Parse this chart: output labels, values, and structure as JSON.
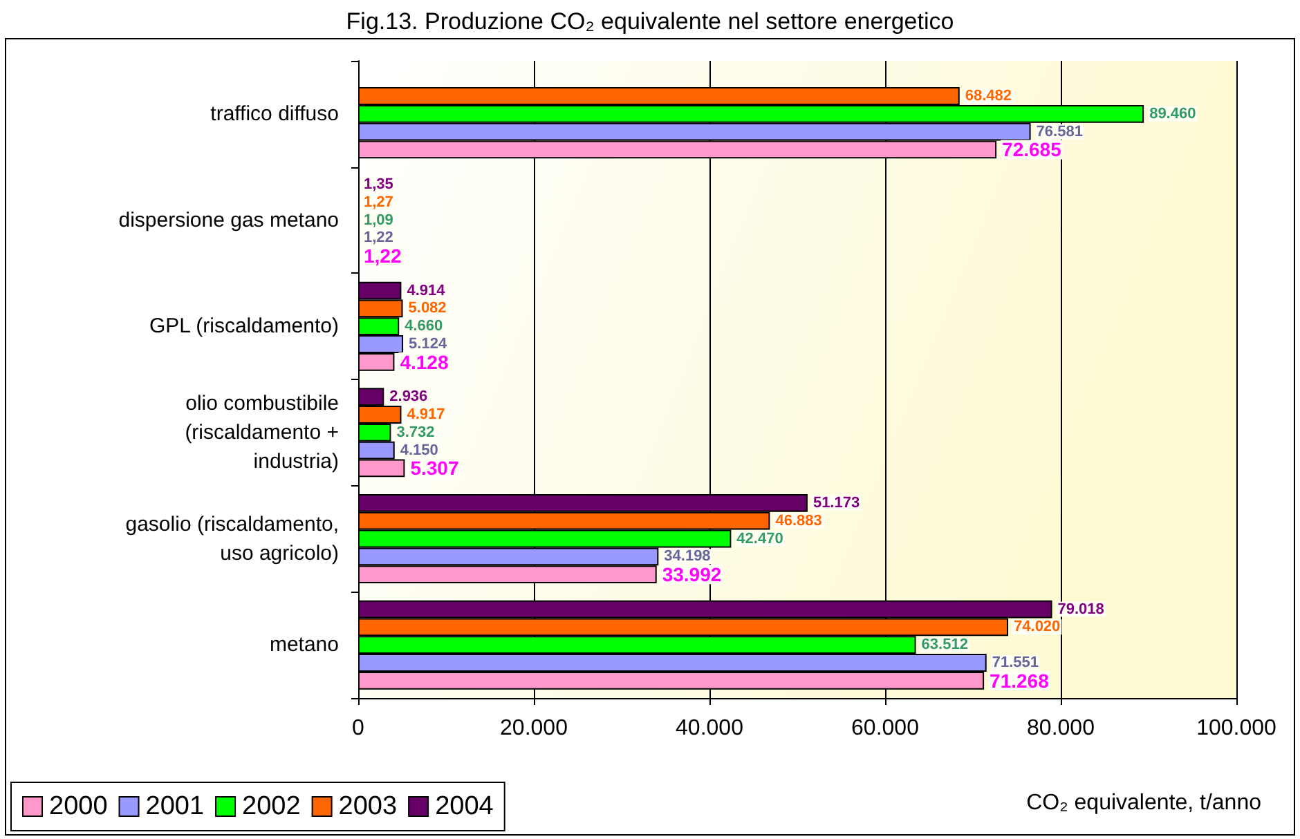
{
  "chart_data": {
    "type": "bar",
    "orientation": "horizontal",
    "title": "Fig.13. Produzione CO₂ equivalente nel settore energetico",
    "xlabel": "CO₂ equivalente, t/anno",
    "categories": [
      "traffico diffuso",
      "dispersione gas metano",
      "GPL (riscaldamento)",
      "olio combustibile\n(riscaldamento +\nindustria)",
      "gasolio (riscaldamento,\nuso agricolo)",
      "metano"
    ],
    "series": [
      {
        "name": "2000",
        "color": "#ff99cc",
        "values": [
          72685,
          1.22,
          4128,
          5307,
          33992,
          71268
        ],
        "value_labels": [
          "72.685",
          "1,22",
          "4.128",
          "5.307",
          "33.992",
          "71.268"
        ]
      },
      {
        "name": "2001",
        "color": "#9999ff",
        "values": [
          76581,
          1.22,
          5124,
          4150,
          34198,
          71551
        ],
        "value_labels": [
          "76.581",
          "1,22",
          "5.124",
          "4.150",
          "34.198",
          "71.551"
        ]
      },
      {
        "name": "2002",
        "color": "#00ff00",
        "values": [
          89460,
          1.09,
          4660,
          3732,
          42470,
          63512
        ],
        "value_labels": [
          "89.460",
          "1,09",
          "4.660",
          "3.732",
          "42.470",
          "63.512"
        ]
      },
      {
        "name": "2003",
        "color": "#ff6600",
        "values": [
          68482,
          1.27,
          5082,
          4917,
          46883,
          74020
        ],
        "value_labels": [
          "68.482",
          "1,27",
          "5.082",
          "4.917",
          "46.883",
          "74.020"
        ]
      },
      {
        "name": "2004",
        "color": "#660066",
        "values": [
          null,
          1.35,
          4914,
          2936,
          51173,
          79018
        ],
        "value_labels": [
          null,
          "1,35",
          "4.914",
          "2.936",
          "51.173",
          "79.018"
        ]
      }
    ],
    "xlim": [
      0,
      100000
    ],
    "xticks": [
      {
        "value": 0,
        "label": "0"
      },
      {
        "value": 20000,
        "label": "20.000"
      },
      {
        "value": 40000,
        "label": "40.000"
      },
      {
        "value": 60000,
        "label": "60.000"
      },
      {
        "value": 80000,
        "label": "80.000"
      },
      {
        "value": 100000,
        "label": "100.000"
      }
    ],
    "grid": "x",
    "legend": "bottom left"
  }
}
